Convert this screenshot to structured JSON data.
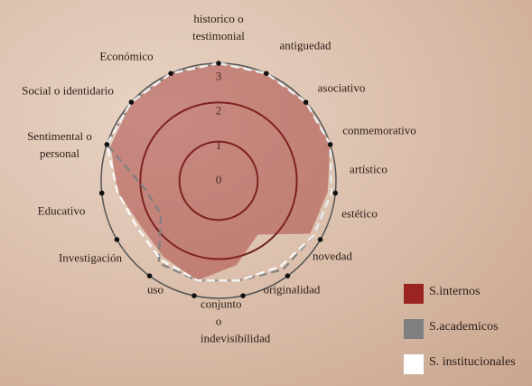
{
  "chart_data": {
    "type": "radar",
    "categories": [
      "historico o testimonial",
      "antiguedad",
      "asociativo",
      "conmemorativo",
      "artístico",
      "estético",
      "novedad",
      "originalidad",
      "conjunto o indevisibilidad",
      "uso",
      "Investigación",
      "Educativo",
      "Sentimental o personal",
      "Social o identidario",
      "Económico"
    ],
    "series": [
      {
        "name": "S.internos",
        "color": "#9b2423",
        "values": [
          3,
          3,
          3,
          3,
          2.8,
          2.7,
          1.7,
          2.2,
          2.6,
          2.4,
          2.3,
          2.6,
          2.9,
          3,
          3
        ]
      },
      {
        "name": "S.academicos",
        "color": "#7f7f7f",
        "values": [
          3,
          3,
          3,
          3,
          2.9,
          2.8,
          2.8,
          2.6,
          2.6,
          2.6,
          1.7,
          1.9,
          3,
          3,
          3
        ]
      },
      {
        "name": "S. institucionales",
        "color": "#ffffff",
        "values": [
          3,
          3,
          3,
          3,
          2.9,
          2.8,
          2.7,
          2.6,
          2.6,
          2.5,
          2.4,
          2.6,
          3,
          3,
          3
        ]
      }
    ],
    "ylim": [
      0,
      3
    ],
    "yticks": [
      0,
      1,
      2,
      3
    ]
  }
}
